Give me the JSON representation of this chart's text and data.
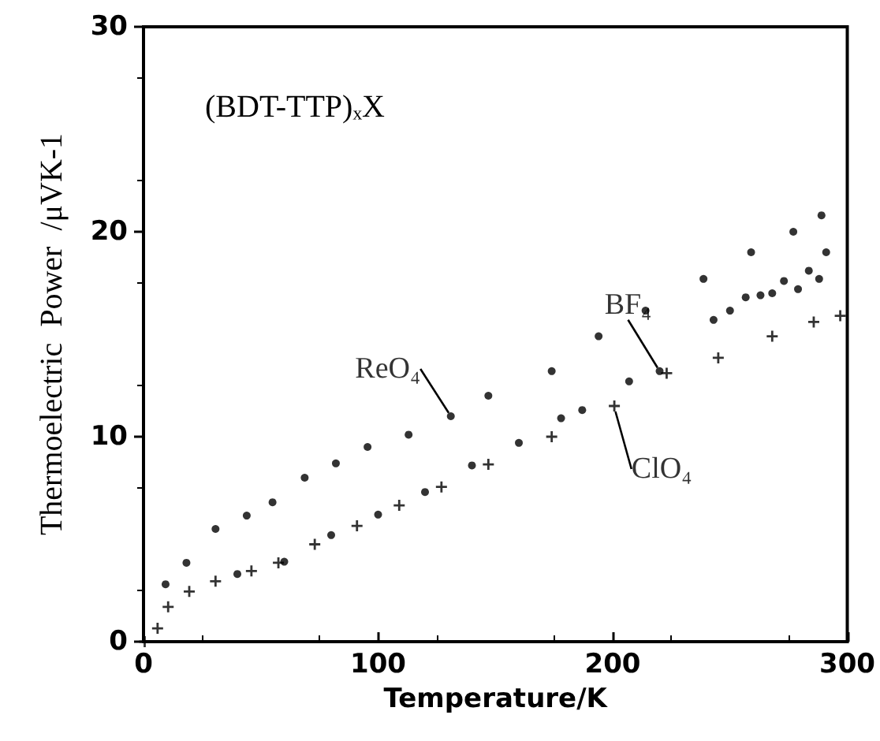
{
  "chart_data": {
    "type": "scatter",
    "xlabel": "Temperature/K",
    "ylabel": "Thermoelectric  Power  /μVK-1",
    "annotations": [
      "(BDT-TTP)ₓX"
    ],
    "xlim": [
      0,
      300
    ],
    "xticks": [
      0,
      100,
      200,
      300
    ],
    "ylim": [
      0,
      30
    ],
    "yticks": [
      0,
      10,
      20,
      30
    ],
    "grid": false,
    "legend": false,
    "series": [
      {
        "name": "ReO₄",
        "color": "#000000",
        "marker": "circle",
        "x": [
          9.4,
          18.3,
          30.7,
          44,
          55,
          68.7,
          82,
          95.5,
          113,
          131,
          147,
          174,
          194,
          214,
          238.7,
          259,
          277,
          289
        ],
        "values": [
          2.8,
          3.85,
          5.5,
          6.15,
          6.8,
          8.0,
          8.7,
          9.5,
          10.1,
          11.0,
          12.0,
          13.2,
          14.9,
          16.15,
          17.7,
          19.0,
          20.0,
          20.8
        ]
      },
      {
        "name": "BF₄",
        "color": "#000000",
        "marker": "circle",
        "x": [
          40,
          60,
          80,
          100,
          120,
          140,
          160,
          178,
          187,
          207,
          220,
          243,
          250,
          256.7,
          263,
          268,
          273,
          279,
          283.6,
          288,
          291
        ],
        "values": [
          3.3,
          3.9,
          5.2,
          6.2,
          7.3,
          8.6,
          9.7,
          10.9,
          11.3,
          12.7,
          13.2,
          15.7,
          16.15,
          16.8,
          16.9,
          17.0,
          17.6,
          17.2,
          18.1,
          17.7,
          19.0
        ]
      },
      {
        "name": "ClO₄",
        "color": "#000000",
        "marker": "cross",
        "x": [
          0.5,
          6,
          10.5,
          19.5,
          30.7,
          46,
          57.5,
          73,
          91,
          109,
          127,
          147,
          174,
          200.7,
          223,
          245,
          268,
          285.7,
          297
        ],
        "values": [
          0,
          0.65,
          1.7,
          2.45,
          2.95,
          3.45,
          3.85,
          4.75,
          5.65,
          6.65,
          7.55,
          8.65,
          10.0,
          11.5,
          13.1,
          13.85,
          14.9,
          15.6,
          15.9
        ]
      }
    ]
  }
}
